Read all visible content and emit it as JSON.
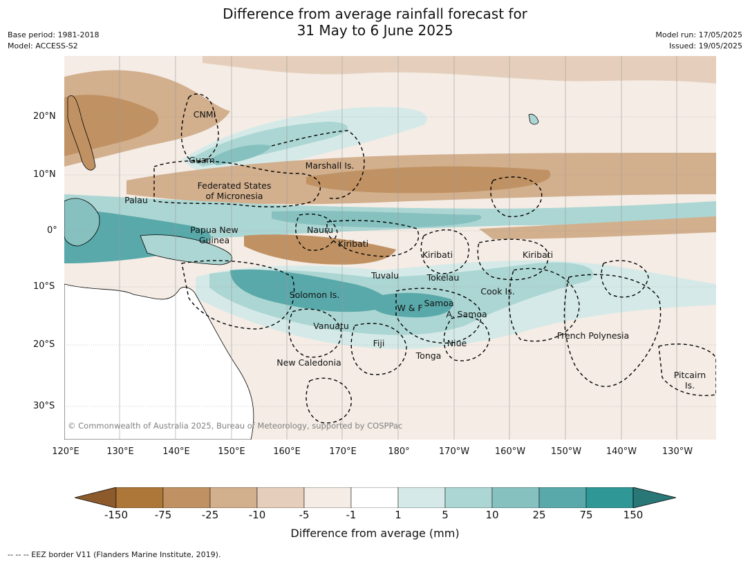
{
  "title": {
    "line1": "Difference from average rainfall forecast for",
    "line2": "31 May to 6 June 2025"
  },
  "meta": {
    "base_period": "Base period: 1981-2018",
    "model": "Model: ACCESS-S2",
    "model_run": "Model run: 17/05/2025",
    "issued": "Issued: 19/05/2025"
  },
  "axes": {
    "latitudes": [
      "20°N",
      "10°N",
      "0°",
      "10°S",
      "20°S",
      "30°S"
    ],
    "longitudes": [
      "120°E",
      "130°E",
      "140°E",
      "150°E",
      "160°E",
      "170°E",
      "180°",
      "170°W",
      "160°W",
      "150°W",
      "140°W",
      "130°W"
    ]
  },
  "regions": [
    {
      "name": "CNMI"
    },
    {
      "name": "Guam"
    },
    {
      "name": "Marshall Is."
    },
    {
      "name": "Federated States\nof Micronesia"
    },
    {
      "name": "Palau"
    },
    {
      "name": "Papua New\nGuinea"
    },
    {
      "name": "Nauru"
    },
    {
      "name": "Kiribati"
    },
    {
      "name": "Kiribati"
    },
    {
      "name": "Kiribati"
    },
    {
      "name": "Tuvalu"
    },
    {
      "name": "Tokelau"
    },
    {
      "name": "Solomon Is."
    },
    {
      "name": "Samoa"
    },
    {
      "name": "W & F"
    },
    {
      "name": "A. Samoa"
    },
    {
      "name": "Cook Is."
    },
    {
      "name": "Vanuatu"
    },
    {
      "name": "Fiji"
    },
    {
      "name": "Niue"
    },
    {
      "name": "Tonga"
    },
    {
      "name": "French Polynesia"
    },
    {
      "name": "New Caledonia"
    },
    {
      "name": "Pitcairn\nIs."
    }
  ],
  "credit": "© Commonwealth of Australia 2025, Bureau of Meteorology, supported by COSPPac",
  "colorbar": {
    "label": "Difference from average (mm)",
    "ticks": [
      "-150",
      "-75",
      "-25",
      "-10",
      "-5",
      "-1",
      "1",
      "5",
      "10",
      "25",
      "75",
      "150"
    ],
    "colors": [
      "#8c5a2b",
      "#ad7739",
      "#c09263",
      "#d2af8d",
      "#e5cfbc",
      "#f4ece5",
      "#ffffff",
      "#d5eae8",
      "#acd6d3",
      "#86c1c0",
      "#59a9aa",
      "#2f9796",
      "#2a7777"
    ]
  },
  "footer": "--  --  -- EEZ border V11 (Flanders Marine Institute, 2019)."
}
